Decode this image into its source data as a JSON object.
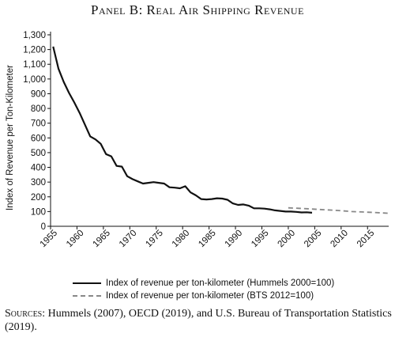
{
  "chart_data": {
    "type": "line",
    "title": "Panel B: Real Air Shipping Revenue",
    "ylabel": "Index of Revenue per Ton-Kilometer",
    "xlabel": "",
    "xlim": [
      1955,
      2019
    ],
    "ylim": [
      0,
      1300
    ],
    "x_ticks": [
      "1955",
      "1960",
      "1965",
      "1970",
      "1975",
      "1980",
      "1985",
      "1990",
      "1995",
      "2000",
      "2005",
      "2010",
      "2015"
    ],
    "y_ticks": [
      "0",
      "100",
      "200",
      "300",
      "400",
      "500",
      "600",
      "700",
      "800",
      "900",
      "1,000",
      "1,100",
      "1,200",
      "1,300"
    ],
    "grid": false,
    "legend_position": "bottom",
    "series": [
      {
        "name": "Index of revenue per ton-kilometer (Hummels 2000=100)",
        "style": "solid",
        "color": "#111111",
        "points": [
          [
            1955.5,
            1220
          ],
          [
            1956.5,
            1070
          ],
          [
            1957.5,
            980
          ],
          [
            1958.5,
            905
          ],
          [
            1959.5,
            840
          ],
          [
            1960.5,
            770
          ],
          [
            1961.5,
            690
          ],
          [
            1962.5,
            610
          ],
          [
            1963.5,
            590
          ],
          [
            1964.5,
            560
          ],
          [
            1965.5,
            490
          ],
          [
            1966.5,
            475
          ],
          [
            1967.5,
            410
          ],
          [
            1968.5,
            405
          ],
          [
            1969.5,
            340
          ],
          [
            1970.5,
            320
          ],
          [
            1971.5,
            305
          ],
          [
            1972.5,
            290
          ],
          [
            1973.5,
            295
          ],
          [
            1974.5,
            300
          ],
          [
            1975.5,
            295
          ],
          [
            1976.5,
            290
          ],
          [
            1977.5,
            265
          ],
          [
            1978.5,
            262
          ],
          [
            1979.5,
            258
          ],
          [
            1980.5,
            272
          ],
          [
            1981.5,
            230
          ],
          [
            1982.5,
            210
          ],
          [
            1983.5,
            185
          ],
          [
            1984.5,
            182
          ],
          [
            1985.5,
            185
          ],
          [
            1986.5,
            190
          ],
          [
            1987.5,
            188
          ],
          [
            1988.5,
            180
          ],
          [
            1989.5,
            155
          ],
          [
            1990.5,
            145
          ],
          [
            1991.5,
            148
          ],
          [
            1992.5,
            140
          ],
          [
            1993.5,
            122
          ],
          [
            1994.5,
            122
          ],
          [
            1995.5,
            120
          ],
          [
            1996.5,
            115
          ],
          [
            1997.5,
            108
          ],
          [
            1998.5,
            104
          ],
          [
            1999.5,
            100
          ],
          [
            2000.5,
            100
          ],
          [
            2001.5,
            98
          ],
          [
            2002.5,
            94
          ],
          [
            2003.5,
            95
          ],
          [
            2004.5,
            92
          ]
        ]
      },
      {
        "name": "Index of revenue per ton-kilometer (BTS 2012=100)",
        "style": "dashed",
        "color": "#888888",
        "points": [
          [
            2000,
            125
          ],
          [
            2002,
            122
          ],
          [
            2004,
            118
          ],
          [
            2006,
            114
          ],
          [
            2008,
            110
          ],
          [
            2010,
            106
          ],
          [
            2012,
            100
          ],
          [
            2014,
            97
          ],
          [
            2016,
            94
          ],
          [
            2018,
            90
          ],
          [
            2019,
            88
          ]
        ]
      }
    ]
  },
  "sources": {
    "lead": "Sources:",
    "text": " Hummels (2007), OECD (2019), and U.S. Bureau of Transportation Statistics (2019)."
  }
}
